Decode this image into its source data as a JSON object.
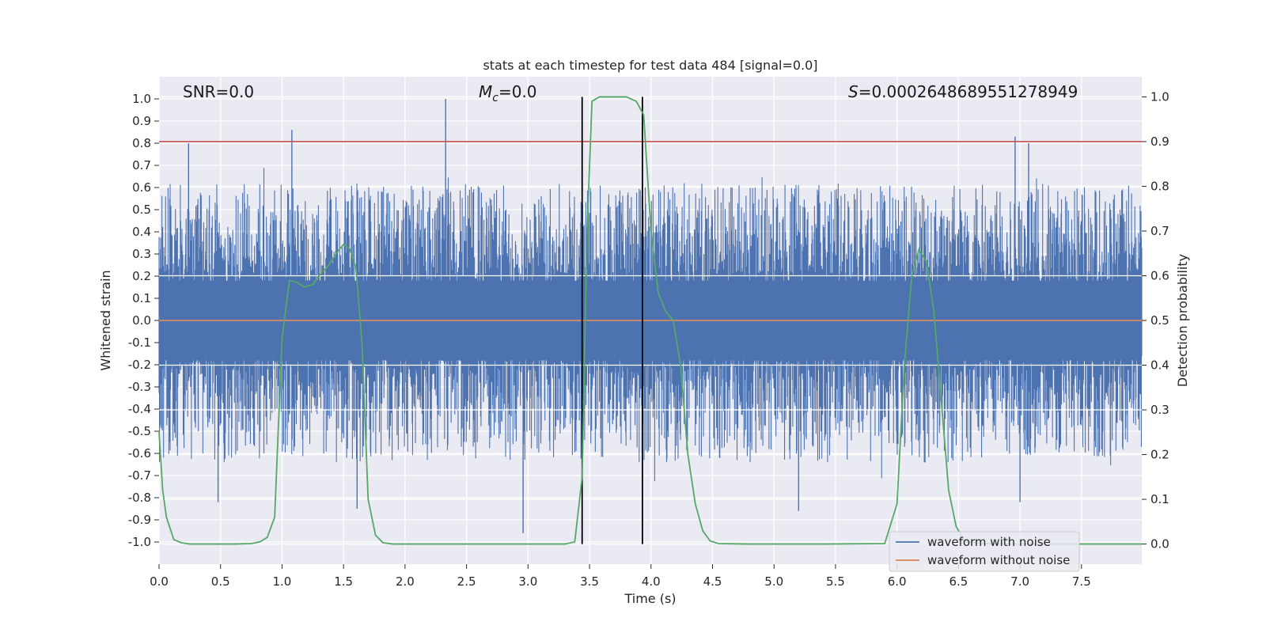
{
  "chart_data": {
    "type": "line",
    "title": "stats at each timestep for test data 484 [signal=0.0]",
    "xlabel": "Time (s)",
    "ylabel_left": "Whitened strain",
    "ylabel_right": "Detection probability",
    "xlim": [
      0.0,
      7.99
    ],
    "ylim_left": [
      -1.1,
      1.1
    ],
    "ylim_right": [
      -0.045,
      1.045
    ],
    "x_ticks": [
      0.0,
      0.5,
      1.0,
      1.5,
      2.0,
      2.5,
      3.0,
      3.5,
      4.0,
      4.5,
      5.0,
      5.5,
      6.0,
      6.5,
      7.0,
      7.5
    ],
    "x_tick_labels": [
      "0.0",
      "0.5",
      "1.0",
      "1.5",
      "2.0",
      "2.5",
      "3.0",
      "3.5",
      "4.0",
      "4.5",
      "5.0",
      "5.5",
      "6.0",
      "6.5",
      "7.0",
      "7.5"
    ],
    "y_left_ticks": [
      1.0,
      0.9,
      0.8,
      0.7,
      0.6,
      0.5,
      0.4,
      0.3,
      0.2,
      0.1,
      0.0,
      -0.1,
      -0.2,
      -0.3,
      -0.4,
      -0.5,
      -0.6,
      -0.7,
      -0.8,
      -0.9,
      -1.0
    ],
    "y_left_tick_labels": [
      "1.0",
      "0.9",
      "0.8",
      "0.7",
      "0.6",
      "0.5",
      "0.4",
      "0.3",
      "0.2",
      "0.1",
      "0.0",
      "-0.1",
      "-0.2",
      "-0.3",
      "-0.4",
      "-0.5",
      "-0.6",
      "-0.7",
      "-0.8",
      "-0.9",
      "-1.0"
    ],
    "y_right_ticks": [
      1.0,
      0.9,
      0.8,
      0.7,
      0.6,
      0.5,
      0.4,
      0.3,
      0.2,
      0.1,
      0.0
    ],
    "y_right_tick_labels": [
      "1.0",
      "0.9",
      "0.8",
      "0.7",
      "0.6",
      "0.5",
      "0.4",
      "0.3",
      "0.2",
      "0.1",
      "0.0"
    ],
    "annotations": {
      "snr": "SNR=0.0",
      "mc_symbol": "M",
      "mc_subscript": "c",
      "mc_value": "=0.0",
      "s_symbol": "S",
      "s_value": "=0.0002648689551278949"
    },
    "threshold_right": 0.9,
    "vertical_lines_x": [
      3.44,
      3.93
    ],
    "legend": {
      "position": "lower-right",
      "entries": [
        {
          "label": "waveform with noise",
          "color": "#4c72b0"
        },
        {
          "label": "waveform without noise",
          "color": "#dd8452"
        }
      ]
    },
    "series": [
      {
        "name": "waveform with noise",
        "axis": "left",
        "color": "#4c72b0",
        "description_values": "dense whitened noise, typical amplitude within ±0.5, with occasional peaks",
        "peaks": [
          {
            "x": 0.24,
            "y": 0.8
          },
          {
            "x": 1.08,
            "y": 0.86
          },
          {
            "x": 2.33,
            "y": 1.0
          },
          {
            "x": 2.96,
            "y": -0.96
          },
          {
            "x": 1.61,
            "y": -0.85
          },
          {
            "x": 0.48,
            "y": -0.76
          },
          {
            "x": 0.48,
            "y": -0.82
          },
          {
            "x": 5.2,
            "y": -0.86
          },
          {
            "x": 6.96,
            "y": 0.83
          },
          {
            "x": 7.07,
            "y": 0.8
          },
          {
            "x": 7.0,
            "y": -0.82
          }
        ]
      },
      {
        "name": "waveform without noise",
        "axis": "left",
        "color": "#dd8452",
        "x": [
          0.0,
          7.99
        ],
        "y": [
          0.0,
          0.0
        ]
      },
      {
        "name": "detection probability",
        "axis": "right",
        "color": "#55a868",
        "x": [
          0.0,
          0.03,
          0.06,
          0.12,
          0.18,
          0.25,
          0.4,
          0.6,
          0.75,
          0.82,
          0.88,
          0.94,
          1.0,
          1.06,
          1.12,
          1.18,
          1.25,
          1.3,
          1.37,
          1.44,
          1.5,
          1.55,
          1.6,
          1.65,
          1.7,
          1.76,
          1.82,
          1.9,
          2.2,
          2.6,
          3.0,
          3.3,
          3.38,
          3.44,
          3.48,
          3.52,
          3.58,
          3.7,
          3.8,
          3.88,
          3.94,
          4.0,
          4.06,
          4.12,
          4.18,
          4.24,
          4.3,
          4.36,
          4.42,
          4.48,
          4.55,
          4.8,
          5.4,
          5.9,
          6.0,
          6.06,
          6.12,
          6.18,
          6.24,
          6.3,
          6.36,
          6.42,
          6.48,
          6.55,
          6.7,
          7.0,
          7.3,
          7.99
        ],
        "y": [
          0.25,
          0.12,
          0.06,
          0.01,
          0.003,
          0.0,
          0.0,
          0.0,
          0.001,
          0.005,
          0.015,
          0.06,
          0.46,
          0.59,
          0.585,
          0.575,
          0.58,
          0.6,
          0.62,
          0.65,
          0.67,
          0.66,
          0.62,
          0.45,
          0.1,
          0.02,
          0.003,
          0.0,
          0.0,
          0.0,
          0.0,
          0.0,
          0.005,
          0.15,
          0.7,
          0.99,
          1.0,
          1.0,
          1.0,
          0.99,
          0.96,
          0.7,
          0.56,
          0.52,
          0.5,
          0.4,
          0.2,
          0.09,
          0.03,
          0.007,
          0.001,
          0.0,
          0.0,
          0.001,
          0.09,
          0.4,
          0.6,
          0.66,
          0.63,
          0.52,
          0.32,
          0.12,
          0.04,
          0.005,
          0.001,
          0.0,
          0.0,
          0.0
        ]
      }
    ]
  }
}
